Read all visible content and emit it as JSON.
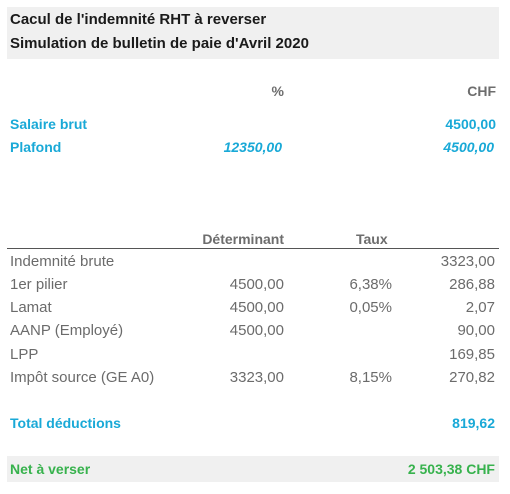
{
  "title": {
    "line1": "Cacul de l'indemnité RHT à reverser",
    "line2": "Simulation de bulletin de paie d'Avril 2020"
  },
  "top_headers": {
    "pct": "%",
    "chf": "CHF"
  },
  "top_rows": [
    {
      "label": "Salaire brut",
      "pct": "",
      "chf": "4500,00"
    },
    {
      "label": "Plafond",
      "pct": "12350,00",
      "chf": "4500,00"
    }
  ],
  "table_headers": {
    "determinant": "Déterminant",
    "taux": "Taux"
  },
  "rows": [
    {
      "label": "Indemnité brute",
      "determinant": "",
      "taux": "",
      "amount": "3323,00"
    },
    {
      "label": "1er pilier",
      "determinant": "4500,00",
      "taux": "6,38%",
      "amount": "286,88"
    },
    {
      "label": "Lamat",
      "determinant": "4500,00",
      "taux": "0,05%",
      "amount": "2,07"
    },
    {
      "label": "AANP (Employé)",
      "determinant": "4500,00",
      "taux": "",
      "amount": "90,00"
    },
    {
      "label": "LPP",
      "determinant": "",
      "taux": "",
      "amount": "169,85"
    },
    {
      "label": "Impôt source (GE A0)",
      "determinant": "3323,00",
      "taux": "8,15%",
      "amount": "270,82"
    }
  ],
  "total": {
    "label": "Total déductions",
    "amount": "819,62"
  },
  "net": {
    "label": "Net à verser",
    "amount": "2 503,38 CHF"
  },
  "colors": {
    "accent": "#19a9d7",
    "net": "#37b24d",
    "header_bg": "#f0f0f0"
  }
}
